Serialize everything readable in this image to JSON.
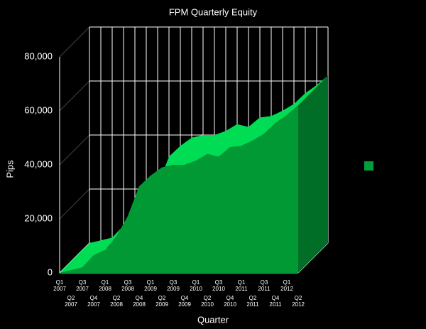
{
  "chart_data": {
    "type": "area3d",
    "title": "FPM Quarterly Equity",
    "x_label": "Quarter",
    "y_label": "Pips",
    "categories": [
      "Q1 2007",
      "Q2 2007",
      "Q3 2007",
      "Q4 2007",
      "Q1 2008",
      "Q2 2008",
      "Q3 2008",
      "Q4 2008",
      "Q1 2009",
      "Q2 2009",
      "Q3 2009",
      "Q4 2009",
      "Q1 2010",
      "Q2 2010",
      "Q3 2010",
      "Q4 2010",
      "Q1 2011",
      "Q2 2011",
      "Q3 2011",
      "Q4 2011",
      "Q1 2012",
      "Q2 2012"
    ],
    "values": [
      0,
      1000,
      2000,
      6500,
      8500,
      13500,
      21000,
      32000,
      36000,
      39000,
      40000,
      40000,
      41500,
      44000,
      43000,
      46500,
      47000,
      49000,
      51500,
      55500,
      58500,
      62000
    ],
    "color": "#009933",
    "ylim": [
      0,
      80000
    ],
    "yticks": [
      0,
      {
        "value": 20000,
        "label": "20,000"
      },
      {
        "value": 40000,
        "label": "40,000"
      },
      {
        "value": 60000,
        "label": "60,000"
      },
      {
        "value": 80000,
        "label": "80,000"
      }
    ],
    "grid": true
  }
}
